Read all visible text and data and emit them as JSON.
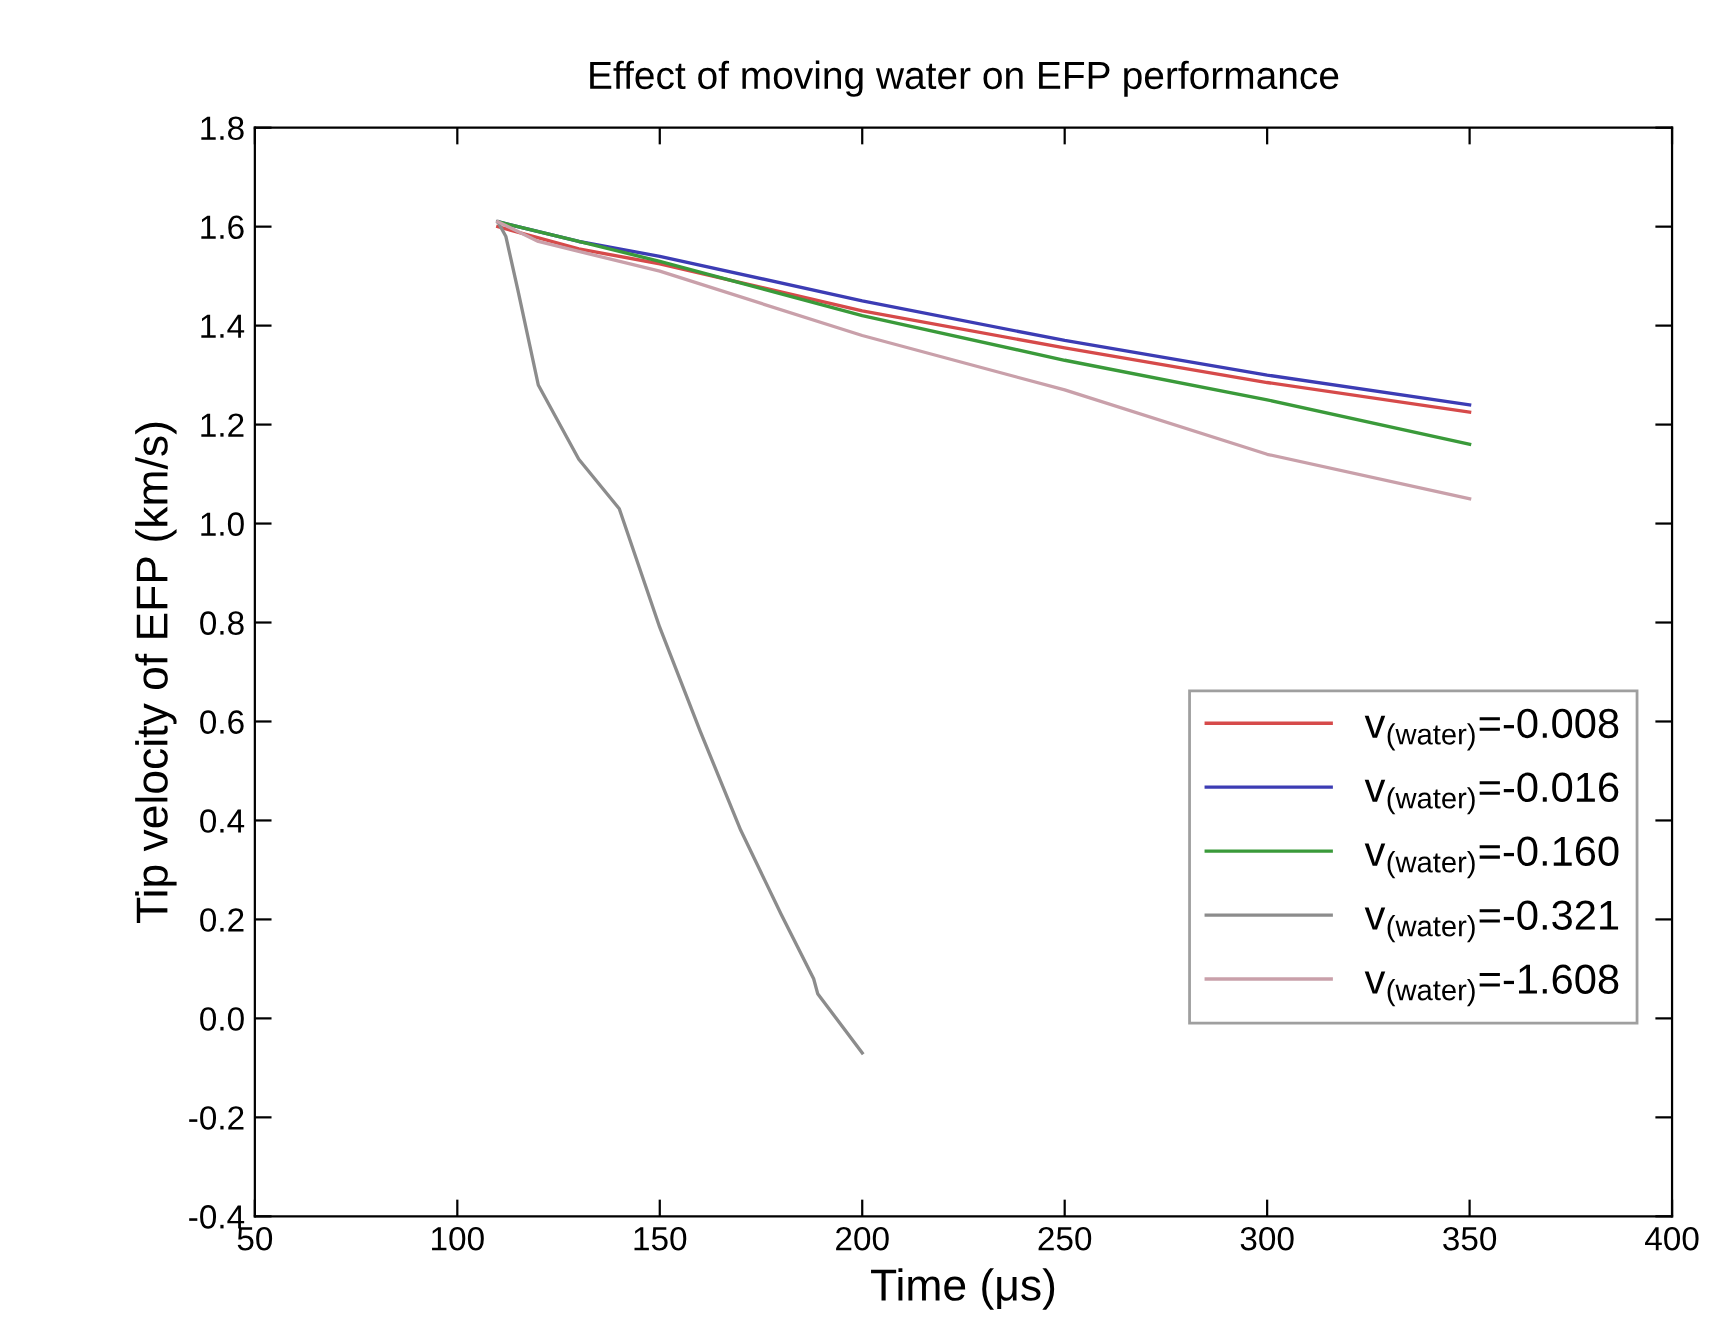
{
  "chart_data": {
    "type": "line",
    "title": "Effect of moving water on EFP performance",
    "xlabel": "Time (μs)",
    "ylabel": "Tip velocity of EFP (km/s)",
    "xlim": [
      50,
      400
    ],
    "xticks": [
      50,
      100,
      150,
      200,
      250,
      300,
      350,
      400
    ],
    "ylim": [
      -0.4,
      1.8
    ],
    "yticks": [
      -0.4,
      -0.2,
      {
        "value": 0,
        "label": "0.0"
      },
      0.2,
      0.4,
      0.6,
      0.8,
      {
        "value": 1,
        "label": "1.0"
      },
      1.2,
      1.4,
      1.6,
      1.8
    ],
    "grid": false,
    "legend": "right",
    "marker": "none",
    "line_style": "solid",
    "series": [
      {
        "name": "v$_{(water)}$=-0.008",
        "color": "#d64a4a",
        "x": [
          110,
          130,
          150,
          200,
          250,
          300,
          350
        ],
        "values": [
          1.6,
          1.555,
          1.525,
          1.43,
          1.355,
          1.285,
          1.225
        ]
      },
      {
        "name": "v$_{(water)}$=-0.016",
        "color": "#3c3cb4",
        "x": [
          110,
          130,
          150,
          200,
          250,
          300,
          350
        ],
        "values": [
          1.61,
          1.57,
          1.54,
          1.45,
          1.37,
          1.3,
          1.24
        ]
      },
      {
        "name": "v$_{(water)}$=-0.160",
        "color": "#3a9a3a",
        "x": [
          110,
          130,
          150,
          200,
          250,
          300,
          350
        ],
        "values": [
          1.61,
          1.57,
          1.53,
          1.42,
          1.33,
          1.25,
          1.16
        ]
      },
      {
        "name": "v$_{(water)}$=-0.321",
        "color": "#8c8c8c",
        "x": [
          110,
          112,
          115,
          120,
          130,
          140,
          150,
          160,
          170,
          180,
          188,
          189,
          200
        ],
        "values": [
          1.61,
          1.58,
          1.47,
          1.28,
          1.13,
          1.03,
          0.79,
          0.58,
          0.38,
          0.21,
          0.08,
          0.05,
          -0.07
        ]
      },
      {
        "name": "v$_{(water)}$=-1.608",
        "color": "#c9a0aa",
        "x": [
          110,
          120,
          130,
          150,
          200,
          250,
          300,
          350
        ],
        "values": [
          1.61,
          1.57,
          1.55,
          1.51,
          1.38,
          1.27,
          1.14,
          1.05
        ]
      }
    ]
  }
}
